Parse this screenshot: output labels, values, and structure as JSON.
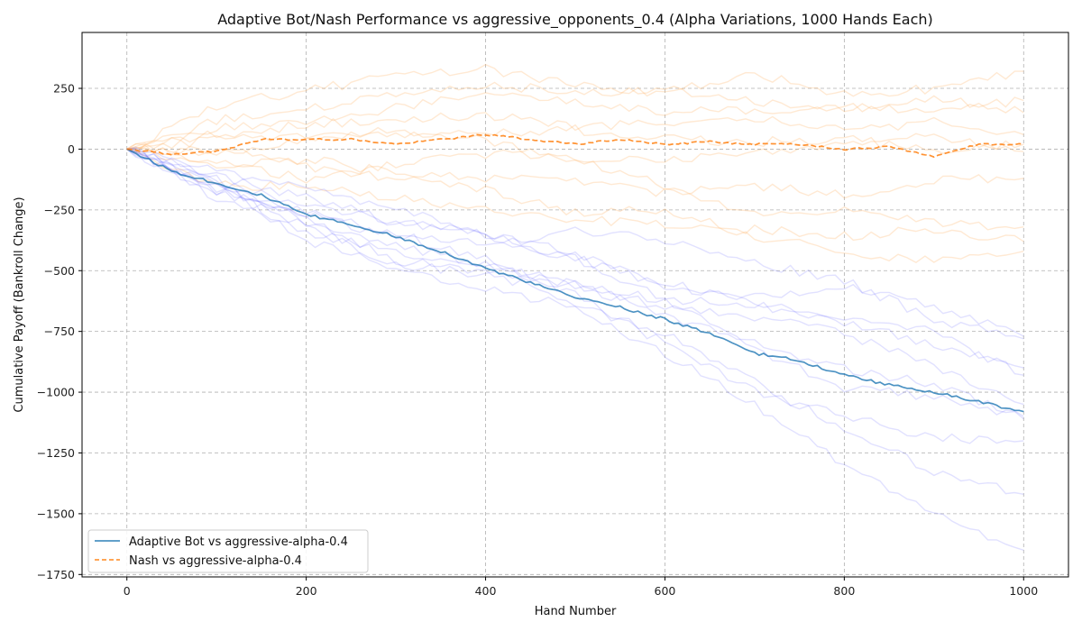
{
  "chart_data": {
    "type": "line",
    "title": "Adaptive Bot/Nash Performance vs  aggressive_opponents_0.4 (Alpha Variations, 1000 Hands Each)",
    "xlabel": "Hand Number",
    "ylabel": "Cumulative Payoff (Bankroll Change)",
    "xlim": [
      -50,
      1050
    ],
    "ylim": [
      -1760,
      480
    ],
    "x_ticks": [
      0,
      200,
      400,
      600,
      800,
      1000
    ],
    "y_ticks": [
      250,
      0,
      -250,
      -500,
      -750,
      -1000,
      -1250,
      -1500,
      -1750
    ],
    "x_tick_labels": [
      "0",
      "200",
      "400",
      "600",
      "800",
      "1000"
    ],
    "y_tick_labels": [
      "250",
      "0",
      "−250",
      "−500",
      "−750",
      "−1000",
      "−1250",
      "−1500",
      "−1750"
    ],
    "grid": true,
    "legend_position": "lower-left",
    "colors": {
      "adaptive": "#1f77b4",
      "nash": "#ff7f0e",
      "adaptive_faint": "#4444ff",
      "nash_faint": "#ffb060"
    },
    "series": [
      {
        "name": "Adaptive Bot vs aggressive-alpha-0.4",
        "style": "solid",
        "x": [
          0,
          50,
          100,
          150,
          200,
          250,
          300,
          350,
          400,
          450,
          500,
          550,
          600,
          650,
          700,
          750,
          800,
          850,
          900,
          950,
          1000
        ],
        "values": [
          0,
          -90,
          -140,
          -190,
          -270,
          -310,
          -360,
          -420,
          -490,
          -550,
          -610,
          -650,
          -700,
          -760,
          -840,
          -870,
          -930,
          -970,
          -1000,
          -1040,
          -1080
        ]
      },
      {
        "name": "Nash vs aggressive-alpha-0.4",
        "style": "dashed",
        "x": [
          0,
          50,
          100,
          150,
          200,
          250,
          300,
          350,
          400,
          450,
          500,
          550,
          600,
          650,
          700,
          750,
          800,
          850,
          900,
          950,
          1000
        ],
        "values": [
          0,
          -20,
          -10,
          40,
          40,
          40,
          20,
          40,
          60,
          40,
          20,
          40,
          20,
          30,
          20,
          20,
          0,
          10,
          -30,
          20,
          20
        ]
      }
    ],
    "faint_series_adaptive": [
      {
        "x": [
          0,
          100,
          200,
          300,
          400,
          500,
          600,
          700,
          800,
          900,
          1000
        ],
        "values": [
          0,
          -150,
          -300,
          -400,
          -470,
          -560,
          -650,
          -690,
          -760,
          -890,
          -1050
        ]
      },
      {
        "x": [
          0,
          100,
          200,
          300,
          400,
          500,
          600,
          700,
          800,
          900,
          1000
        ],
        "values": [
          0,
          -200,
          -340,
          -420,
          -480,
          -560,
          -680,
          -800,
          -900,
          -970,
          -1110
        ]
      },
      {
        "x": [
          0,
          100,
          200,
          300,
          400,
          500,
          600,
          700,
          800,
          900,
          1000
        ],
        "values": [
          0,
          -140,
          -230,
          -300,
          -350,
          -430,
          -550,
          -640,
          -700,
          -750,
          -930
        ]
      },
      {
        "x": [
          0,
          100,
          200,
          300,
          400,
          500,
          600,
          700,
          800,
          900,
          1000
        ],
        "values": [
          0,
          -180,
          -260,
          -350,
          -450,
          -600,
          -800,
          -1000,
          -1100,
          -1190,
          -1200
        ]
      },
      {
        "x": [
          0,
          100,
          200,
          300,
          400,
          500,
          600,
          700,
          800,
          900,
          1000
        ],
        "values": [
          0,
          -110,
          -200,
          -300,
          -360,
          -450,
          -560,
          -610,
          -560,
          -650,
          -770
        ]
      },
      {
        "x": [
          0,
          100,
          200,
          300,
          400,
          500,
          600,
          700,
          800,
          900,
          1000
        ],
        "values": [
          0,
          -120,
          -380,
          -470,
          -520,
          -560,
          -620,
          -640,
          -720,
          -800,
          -900
        ]
      },
      {
        "x": [
          0,
          100,
          200,
          300,
          400,
          500,
          600,
          700,
          800,
          900,
          1000
        ],
        "values": [
          0,
          -150,
          -290,
          -460,
          -500,
          -640,
          -760,
          -960,
          -1150,
          -1330,
          -1420
        ]
      },
      {
        "x": [
          0,
          100,
          200,
          300,
          400,
          500,
          600,
          700,
          800,
          900,
          1000
        ],
        "values": [
          0,
          -170,
          -310,
          -500,
          -580,
          -650,
          -840,
          -1050,
          -1300,
          -1500,
          -1650
        ]
      },
      {
        "x": [
          0,
          100,
          200,
          300,
          400,
          500,
          600,
          700,
          800,
          900,
          1000
        ],
        "values": [
          0,
          -90,
          -150,
          -250,
          -350,
          -450,
          -620,
          -830,
          -980,
          -1020,
          -1100
        ]
      },
      {
        "x": [
          0,
          100,
          200,
          300,
          400,
          500,
          600,
          700,
          800,
          900,
          1000
        ],
        "values": [
          0,
          -160,
          -270,
          -360,
          -390,
          -340,
          -370,
          -470,
          -540,
          -700,
          -780
        ]
      }
    ],
    "faint_series_nash": [
      {
        "x": [
          0,
          100,
          200,
          300,
          400,
          500,
          600,
          700,
          800,
          900,
          1000
        ],
        "values": [
          0,
          180,
          240,
          300,
          330,
          260,
          230,
          310,
          220,
          250,
          320
        ]
      },
      {
        "x": [
          0,
          100,
          200,
          300,
          400,
          500,
          600,
          700,
          800,
          900,
          1000
        ],
        "values": [
          0,
          120,
          160,
          230,
          270,
          230,
          250,
          190,
          170,
          210,
          150
        ]
      },
      {
        "x": [
          0,
          100,
          200,
          300,
          400,
          500,
          600,
          700,
          800,
          900,
          1000
        ],
        "values": [
          0,
          90,
          120,
          170,
          220,
          200,
          150,
          160,
          180,
          150,
          200
        ]
      },
      {
        "x": [
          0,
          100,
          200,
          300,
          400,
          500,
          600,
          700,
          800,
          900,
          1000
        ],
        "values": [
          0,
          60,
          100,
          120,
          140,
          90,
          110,
          130,
          80,
          110,
          60
        ]
      },
      {
        "x": [
          0,
          100,
          200,
          300,
          400,
          500,
          600,
          700,
          800,
          900,
          1000
        ],
        "values": [
          0,
          -20,
          40,
          80,
          40,
          -60,
          -40,
          -20,
          30,
          50,
          -10
        ]
      },
      {
        "x": [
          0,
          100,
          200,
          300,
          400,
          500,
          600,
          700,
          800,
          900,
          1000
        ],
        "values": [
          0,
          -80,
          -40,
          -100,
          -120,
          -130,
          -180,
          -150,
          -190,
          -130,
          -120
        ]
      },
      {
        "x": [
          0,
          100,
          200,
          300,
          400,
          500,
          600,
          700,
          800,
          900,
          1000
        ],
        "values": [
          0,
          -150,
          -150,
          -200,
          -250,
          -290,
          -310,
          -330,
          -360,
          -330,
          -380
        ]
      },
      {
        "x": [
          0,
          100,
          200,
          300,
          400,
          500,
          600,
          700,
          800,
          900,
          1000
        ],
        "values": [
          0,
          -60,
          -120,
          -60,
          -20,
          -40,
          -150,
          -270,
          -250,
          -300,
          -320
        ]
      },
      {
        "x": [
          0,
          100,
          200,
          300,
          400,
          500,
          600,
          700,
          800,
          900,
          1000
        ],
        "values": [
          0,
          0,
          -70,
          -120,
          -170,
          -260,
          -250,
          -360,
          -420,
          -460,
          -420
        ]
      },
      {
        "x": [
          0,
          100,
          200,
          300,
          400,
          500,
          600,
          700,
          800,
          900,
          1000
        ],
        "values": [
          0,
          40,
          60,
          50,
          70,
          80,
          40,
          30,
          40,
          0,
          20
        ]
      }
    ]
  }
}
